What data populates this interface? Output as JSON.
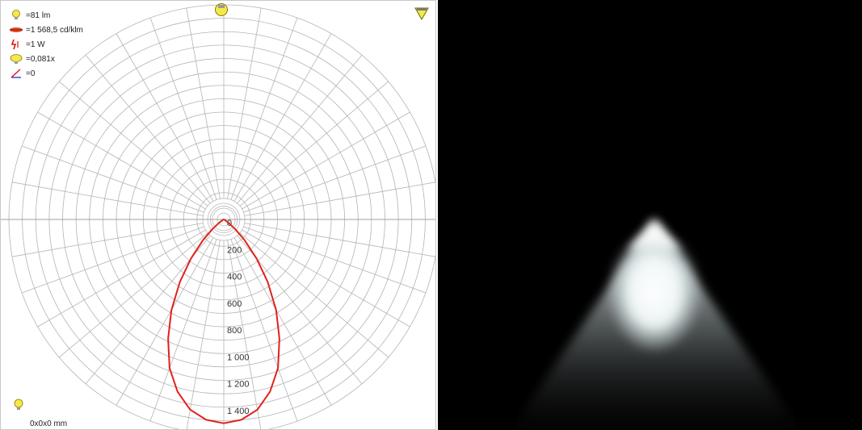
{
  "legend": {
    "flux": "=81 lm",
    "ratio": "=1 568,5 cd/klm",
    "power": "=1 W",
    "count": "=0,081x",
    "angle": "=0"
  },
  "dimensions": "0x0x0 mm",
  "icons": {
    "flux": "lightbulb-icon",
    "ratio": "luminaire-icon",
    "power": "lightning-icon",
    "count": "lamp-icon",
    "angle": "angle-icon",
    "top_center": "bulb-top-icon",
    "top_right": "downlight-icon",
    "bottom_left": "small-bulb-icon"
  },
  "colors": {
    "curve": "#e0221c",
    "grid": "#b4b4b4",
    "background": "#ffffff",
    "render_background": "#000000"
  },
  "chart_data": {
    "type": "polar",
    "radial_labels": [
      "0",
      "200",
      "400",
      "600",
      "800",
      "1 000",
      "1 200",
      "1 400"
    ],
    "radial_max": 1600,
    "angle_step_deg": 10,
    "grid": true,
    "series": [
      {
        "angles_deg": [
          0,
          5,
          10,
          15,
          20,
          25,
          30,
          35,
          40,
          45,
          50,
          55,
          60,
          90
        ],
        "values": [
          1520,
          1500,
          1440,
          1330,
          1180,
          980,
          780,
          570,
          380,
          220,
          110,
          40,
          10,
          0
        ]
      }
    ]
  }
}
